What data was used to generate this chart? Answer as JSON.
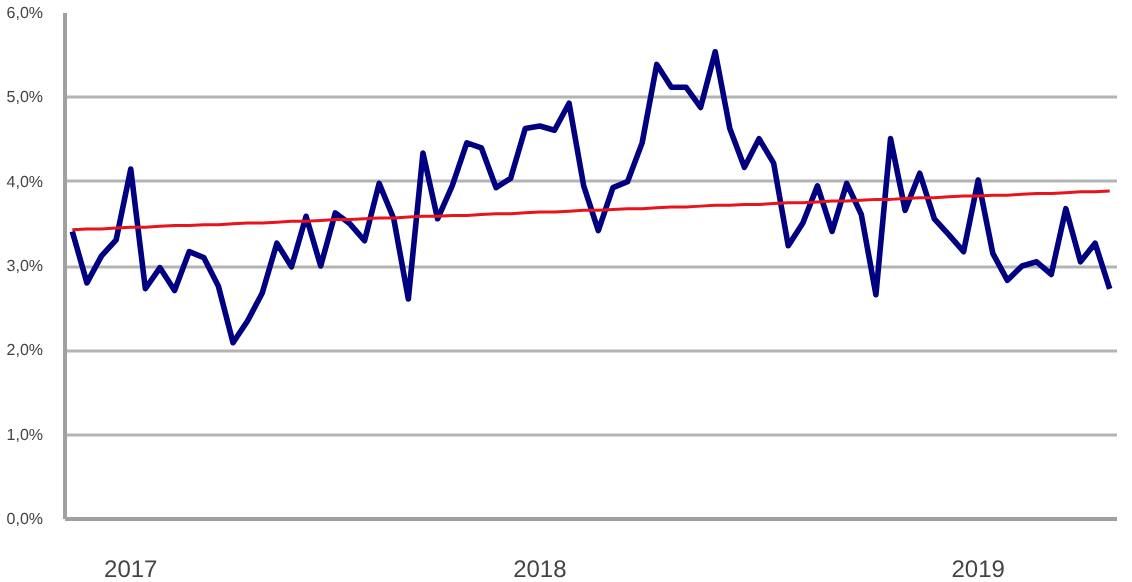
{
  "chart_data": {
    "type": "line",
    "categories": [
      null,
      null,
      null,
      null,
      "2017",
      null,
      null,
      null,
      null,
      null,
      null,
      null,
      null,
      null,
      null,
      null,
      null,
      null,
      null,
      null,
      null,
      null,
      null,
      null,
      null,
      null,
      null,
      null,
      null,
      null,
      null,
      null,
      "2018",
      null,
      null,
      null,
      null,
      null,
      null,
      null,
      null,
      null,
      null,
      null,
      null,
      null,
      null,
      null,
      null,
      null,
      null,
      null,
      null,
      null,
      null,
      null,
      null,
      null,
      null,
      null,
      null,
      null,
      "2019",
      null,
      null,
      null,
      null,
      null,
      null,
      null,
      null,
      null
    ],
    "series": [
      {
        "color": "#000080",
        "values": [
          3.41,
          2.8,
          3.12,
          3.31,
          4.15,
          2.73,
          2.98,
          2.71,
          3.17,
          3.1,
          2.76,
          2.09,
          2.35,
          2.68,
          3.27,
          2.99,
          3.59,
          3.0,
          3.63,
          3.5,
          3.3,
          3.98,
          3.56,
          2.61,
          4.34,
          3.56,
          3.95,
          4.46,
          4.4,
          3.93,
          4.04,
          4.63,
          4.66,
          4.61,
          4.93,
          3.95,
          3.42,
          3.93,
          4.0,
          4.46,
          5.39,
          5.12,
          5.12,
          4.88,
          5.54,
          4.63,
          4.17,
          4.51,
          4.22,
          3.24,
          3.51,
          3.95,
          3.41,
          3.98,
          3.61,
          2.66,
          4.51,
          3.66,
          4.1,
          3.56,
          3.37,
          3.17,
          4.02,
          3.15,
          2.83,
          3.0,
          3.05,
          2.9,
          3.68,
          3.05,
          3.27,
          2.73
        ]
      },
      {
        "type": "line",
        "color": "#e8141c",
        "values": [
          3.43,
          3.44,
          3.44,
          3.45,
          3.46,
          3.46,
          3.47,
          3.48,
          3.48,
          3.49,
          3.49,
          3.5,
          3.51,
          3.51,
          3.52,
          3.53,
          3.53,
          3.54,
          3.55,
          3.55,
          3.56,
          3.57,
          3.57,
          3.58,
          3.59,
          3.59,
          3.6,
          3.6,
          3.61,
          3.62,
          3.62,
          3.63,
          3.64,
          3.64,
          3.65,
          3.66,
          3.66,
          3.67,
          3.68,
          3.68,
          3.69,
          3.7,
          3.7,
          3.71,
          3.72,
          3.72,
          3.73,
          3.73,
          3.74,
          3.75,
          3.75,
          3.76,
          3.77,
          3.77,
          3.78,
          3.79,
          3.79,
          3.8,
          3.81,
          3.81,
          3.82,
          3.83,
          3.83,
          3.84,
          3.84,
          3.85,
          3.86,
          3.86,
          3.87,
          3.88,
          3.88,
          3.89
        ]
      }
    ],
    "ylim": [
      0,
      6
    ],
    "yticks": [
      {
        "value": 0,
        "label": "0,0%"
      },
      {
        "value": 1,
        "label": "1,0%"
      },
      {
        "value": 2,
        "label": "2,0%"
      },
      {
        "value": 3,
        "label": "3,0%"
      },
      {
        "value": 4,
        "label": "4,0%"
      },
      {
        "value": 5,
        "label": "5,0%"
      },
      {
        "value": 6,
        "label": "6,0%"
      }
    ],
    "grid": "y",
    "marker": "none",
    "line_style": "solid"
  }
}
